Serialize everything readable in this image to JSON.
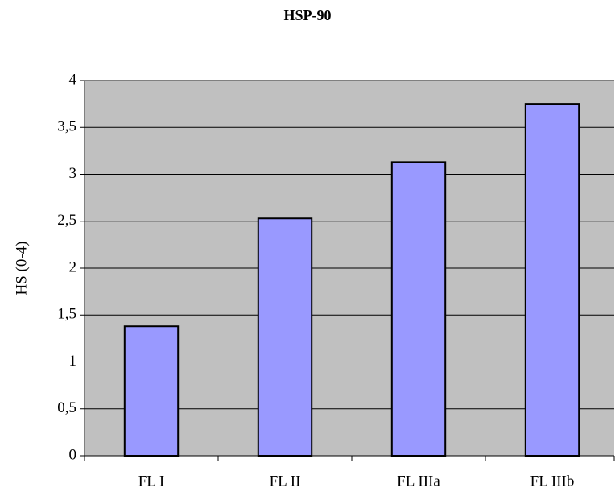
{
  "chart_data": {
    "type": "bar",
    "title": "HSP-90",
    "y_label": "HS (0-4)",
    "categories": [
      "FL I",
      "FL II",
      "FL IIIa",
      "FL IIIb"
    ],
    "values": [
      1.38,
      2.53,
      3.13,
      3.75
    ],
    "color": "#9999ff",
    "ylim": [
      0,
      4
    ],
    "yticks": [
      0,
      {
        "value": 0.5,
        "label": "0,5"
      },
      1,
      {
        "value": 1.5,
        "label": "1,5"
      },
      2,
      {
        "value": 2.5,
        "label": "2,5"
      },
      3,
      {
        "value": 3.5,
        "label": "3,5"
      },
      4
    ],
    "grid": true
  }
}
